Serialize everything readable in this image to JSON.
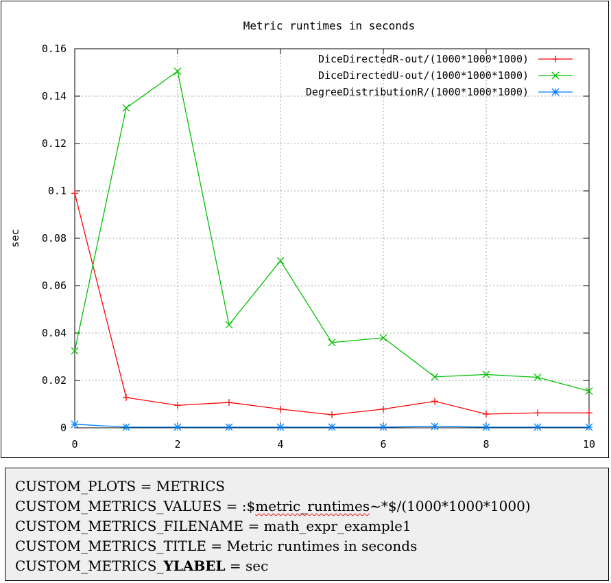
{
  "chart_data": {
    "type": "line",
    "title": "Metric runtimes in seconds",
    "xlabel": "",
    "ylabel": "sec",
    "xlim": [
      0,
      10
    ],
    "ylim": [
      0,
      0.16
    ],
    "xticks": [
      "0",
      "2",
      "4",
      "6",
      "8",
      "10"
    ],
    "xtick_values": [
      0,
      2,
      4,
      6,
      8,
      10
    ],
    "yticks": [
      "0",
      "0.02",
      "0.04",
      "0.06",
      "0.08",
      "0.1",
      "0.12",
      "0.14",
      "0.16"
    ],
    "ytick_values": [
      0,
      0.02,
      0.04,
      0.06,
      0.08,
      0.1,
      0.12,
      0.14,
      0.16
    ],
    "grid": true,
    "legend_position": "top-right",
    "x": [
      0,
      1,
      2,
      3,
      4,
      5,
      6,
      7,
      8,
      9,
      10
    ],
    "series": [
      {
        "name": "DiceDirectedR-out/(1000*1000*1000)",
        "color": "#ff0000",
        "marker": "plus",
        "values": [
          0.099,
          0.0128,
          0.0095,
          0.0107,
          0.0079,
          0.0055,
          0.0079,
          0.0112,
          0.0058,
          0.0063,
          0.0063
        ]
      },
      {
        "name": "DiceDirectedU-out/(1000*1000*1000)",
        "color": "#00c000",
        "marker": "cross",
        "values": [
          0.0325,
          0.135,
          0.1505,
          0.0435,
          0.0705,
          0.036,
          0.038,
          0.0215,
          0.0225,
          0.0213,
          0.0155
        ]
      },
      {
        "name": "DegreeDistributionR/(1000*1000*1000)",
        "color": "#0080ff",
        "marker": "star",
        "values": [
          0.0015,
          0.0003,
          0.0003,
          0.0003,
          0.0003,
          0.0003,
          0.0003,
          0.0006,
          0.0003,
          0.0003,
          0.0003
        ]
      }
    ]
  },
  "config": {
    "line1": "CUSTOM_PLOTS = METRICS",
    "line2_prefix": "CUSTOM_METRICS_VALUES = :$",
    "line2_flagged": "metric_runtimes",
    "line2_suffix": "~*$/(1000*1000*1000)",
    "line3": "CUSTOM_METRICS_FILENAME = math_expr_example1",
    "line4": "CUSTOM_METRICS_TITLE = Metric runtimes in seconds",
    "line5_prefix": "CUSTOM_METRICS_",
    "line5_bold": "YLABEL",
    "line5_suffix": " = sec"
  }
}
